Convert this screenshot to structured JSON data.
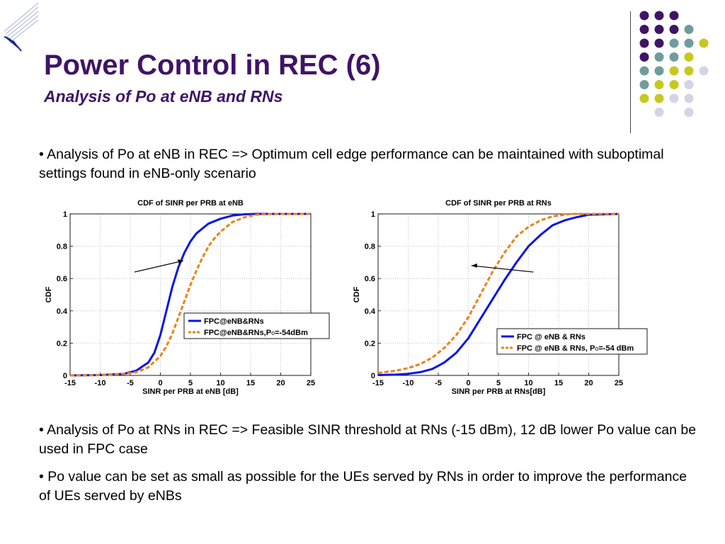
{
  "header": {
    "title": "Power Control in REC (6)",
    "subtitle": "Analysis of Po at eNB and RNs"
  },
  "colors": {
    "title": "#3f1466",
    "series_blue": "#0a14e6",
    "series_orange": "#e8831a",
    "dot_purple": "#3f1466",
    "dot_teal": "#6f9c9c",
    "dot_yellow": "#c8c820",
    "dot_lavender": "#d4d4e8"
  },
  "bullets": {
    "b1": "• Analysis of Po at eNB in REC => Optimum cell edge performance can be maintained with suboptimal settings found in eNB-only scenario",
    "b2": "• Analysis of Po at RNs in REC => Feasible SINR threshold at RNs (-15 dBm), 12 dB lower Po value can be used in FPC case",
    "b3": "• Po value can be set as small as possible for the UEs served by RNs in order to improve the performance of UEs served by eNBs"
  },
  "chart_data": [
    {
      "type": "line",
      "title": "CDF of SINR per PRB at eNB",
      "xlabel": "SINR per PRB at eNB [dB]",
      "ylabel": "CDF",
      "xlim": [
        -15,
        25
      ],
      "ylim": [
        0,
        1
      ],
      "xticks": [
        -15,
        -10,
        -5,
        0,
        5,
        10,
        15,
        20,
        25
      ],
      "yticks": [
        0,
        0.2,
        0.4,
        0.6,
        0.8,
        1
      ],
      "xtick_labels": [
        "-15",
        "-10",
        "-5",
        "0",
        "5",
        "10",
        "15",
        "20",
        "25"
      ],
      "ytick_labels": [
        "0",
        "0.2",
        "0.4",
        "0.6",
        "0.8",
        "1"
      ],
      "grid": true,
      "legend_position": "bottom-right",
      "legend_labels": [
        "FPC@eNB&RNs",
        "FPC@eNB&RNs,P",
        "o",
        "=-54dBm"
      ],
      "annotation": "arrow pointing right",
      "series": [
        {
          "name": "FPC@eNB&RNs",
          "style": "solid",
          "x": [
            -15,
            -10,
            -6,
            -4,
            -2,
            -1,
            0,
            1,
            2,
            3,
            4,
            5,
            6,
            7,
            8,
            10,
            12,
            14,
            16,
            25
          ],
          "y": [
            0.0,
            0.002,
            0.01,
            0.03,
            0.08,
            0.14,
            0.25,
            0.4,
            0.55,
            0.67,
            0.76,
            0.83,
            0.88,
            0.91,
            0.94,
            0.97,
            0.99,
            0.998,
            1.0,
            1.0
          ]
        },
        {
          "name": "FPC@eNB&RNs,Po=-54dBm",
          "style": "dashed",
          "x": [
            -15,
            -10,
            -6,
            -4,
            -2,
            0,
            1,
            2,
            3,
            4,
            5,
            6,
            7,
            8,
            9,
            10,
            12,
            14,
            16,
            18,
            25
          ],
          "y": [
            0.0,
            0.002,
            0.01,
            0.02,
            0.05,
            0.12,
            0.18,
            0.26,
            0.36,
            0.46,
            0.56,
            0.65,
            0.73,
            0.8,
            0.85,
            0.89,
            0.95,
            0.98,
            0.995,
            1.0,
            1.0
          ]
        }
      ]
    },
    {
      "type": "line",
      "title": "CDF of SINR per PRB at RNs",
      "xlabel": "SINR per PRB at RNs[dB]",
      "ylabel": "CDF",
      "xlim": [
        -15,
        25
      ],
      "ylim": [
        0,
        1
      ],
      "xticks": [
        -15,
        -10,
        -5,
        0,
        5,
        10,
        15,
        20,
        25
      ],
      "yticks": [
        0,
        0.2,
        0.4,
        0.6,
        0.8,
        1
      ],
      "xtick_labels": [
        "-15",
        "-10",
        "-5",
        "0",
        "5",
        "10",
        "15",
        "20",
        "25"
      ],
      "ytick_labels": [
        "0",
        "0.2",
        "0.4",
        "0.6",
        "0.8",
        "1"
      ],
      "grid": true,
      "legend_position": "bottom-right",
      "legend_labels": [
        "FPC @ eNB & RNs",
        "FPC @ eNB & RNs, P",
        "o",
        "=-54 dBm"
      ],
      "annotation": "arrow pointing left",
      "series": [
        {
          "name": "FPC @ eNB & RNs",
          "style": "solid",
          "x": [
            -15,
            -12,
            -10,
            -8,
            -6,
            -4,
            -2,
            0,
            2,
            4,
            6,
            8,
            10,
            12,
            14,
            16,
            18,
            20,
            25
          ],
          "y": [
            0.002,
            0.005,
            0.01,
            0.02,
            0.04,
            0.08,
            0.14,
            0.23,
            0.35,
            0.47,
            0.59,
            0.7,
            0.8,
            0.87,
            0.93,
            0.96,
            0.98,
            0.995,
            1.0
          ]
        },
        {
          "name": "FPC @ eNB & RNs, Po=-54 dBm",
          "style": "dashed",
          "x": [
            -15,
            -12,
            -10,
            -8,
            -6,
            -4,
            -2,
            0,
            2,
            4,
            6,
            8,
            10,
            12,
            14,
            17,
            25
          ],
          "y": [
            0.015,
            0.03,
            0.045,
            0.07,
            0.11,
            0.17,
            0.25,
            0.36,
            0.5,
            0.64,
            0.76,
            0.86,
            0.92,
            0.96,
            0.985,
            1.0,
            1.0
          ]
        }
      ]
    }
  ]
}
